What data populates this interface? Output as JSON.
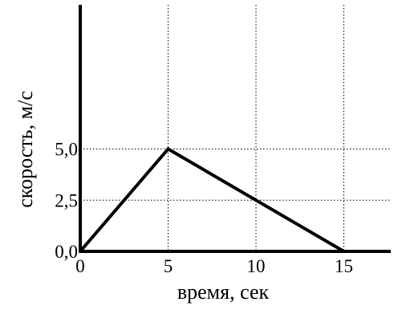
{
  "chart_data": {
    "type": "line",
    "title": "",
    "xlabel": "время, сек",
    "ylabel": "скорость, м/с",
    "xlim": [
      0,
      17.5
    ],
    "ylim": [
      0,
      6.0
    ],
    "x_ticks": [
      {
        "value": 0,
        "label": "0"
      },
      {
        "value": 5,
        "label": "5"
      },
      {
        "value": 10,
        "label": "10"
      },
      {
        "value": 15,
        "label": "15"
      }
    ],
    "y_ticks": [
      {
        "value": 0.0,
        "label": "0,0"
      },
      {
        "value": 2.5,
        "label": "2,5"
      },
      {
        "value": 5.0,
        "label": "5,0"
      }
    ],
    "grid": "dotted",
    "series": [
      {
        "x": [
          0,
          5,
          15,
          17.5
        ],
        "y": [
          0,
          5.0,
          0,
          0
        ],
        "color": "#000000"
      }
    ]
  }
}
